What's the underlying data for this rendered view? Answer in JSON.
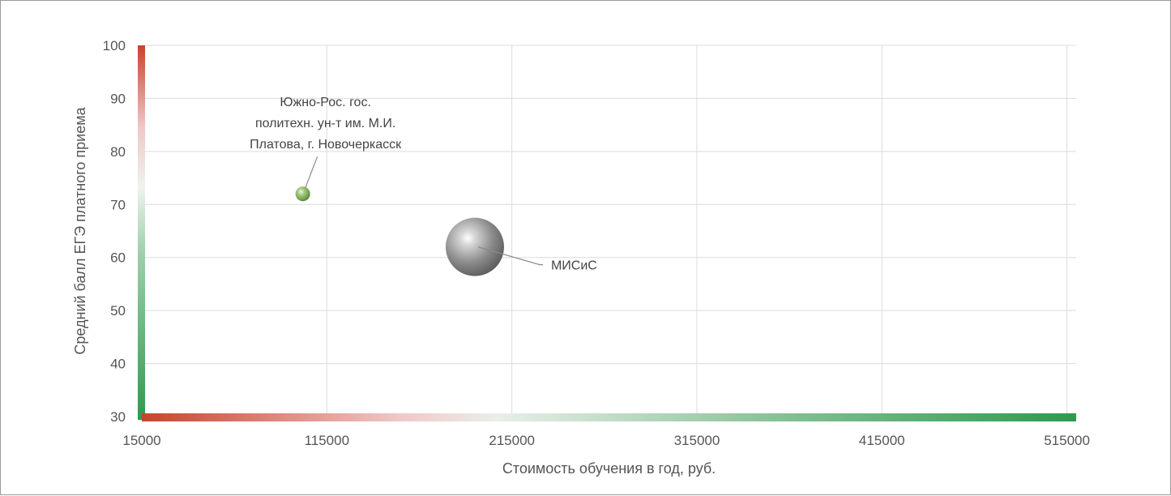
{
  "chart_data": {
    "type": "scatter",
    "variant": "bubble",
    "xlabel": "Стоимость обучения в год, руб.",
    "ylabel": "Средний балл ЕГЭ платного приема",
    "xlim": [
      15000,
      520000
    ],
    "ylim": [
      30,
      100
    ],
    "x_ticks": [
      15000,
      115000,
      215000,
      315000,
      415000,
      515000
    ],
    "y_ticks": [
      30,
      40,
      50,
      60,
      70,
      80,
      90,
      100
    ],
    "grid": true,
    "axis_gradient": {
      "low": "#c8432b",
      "mid": "#eeeeee",
      "high": "#2e9a4e"
    },
    "points": [
      {
        "label": "Южно-Рос. гос. политехн. ун-т им. М.И. Платова, г. Новочеркасск",
        "label_lines": [
          "Южно-Рос. гос.",
          "политехн. ун-т им. М.И.",
          "Платова, г. Новочеркасск"
        ],
        "x": 102000,
        "y": 72,
        "size": "small",
        "color": "#8fb86a"
      },
      {
        "label": "МИСиС",
        "label_lines": [
          "МИСиС"
        ],
        "x": 195000,
        "y": 62,
        "size": "large",
        "color": "#8a8a8a"
      }
    ]
  }
}
